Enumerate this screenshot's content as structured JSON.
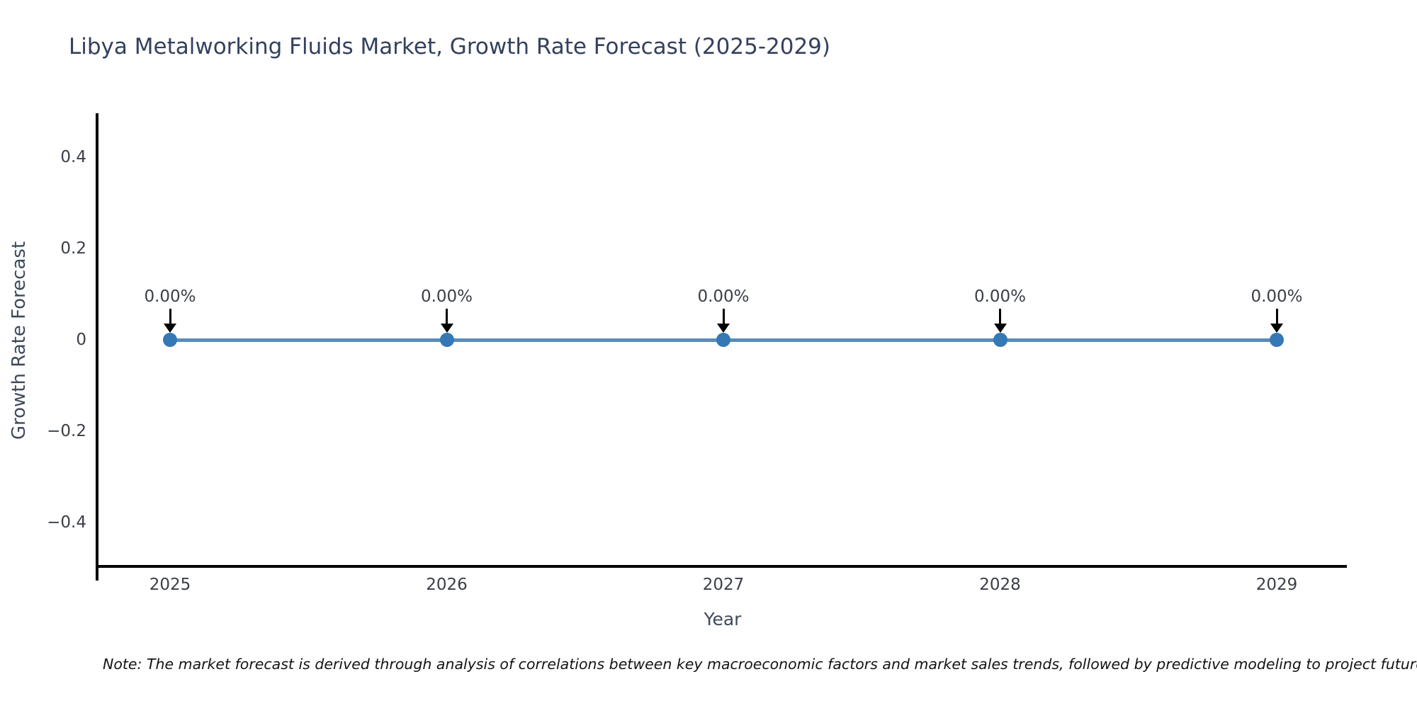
{
  "note": {
    "text": "Note: The market forecast is derived through analysis of correlations between key macroeconomic factors and market sales trends, followed by predictive modeling to project future sales"
  },
  "colors": {
    "background": "#ffffff",
    "title": "#33415e",
    "axis": "#000000",
    "tick_label": "#3a3f47",
    "axis_label": "#3d4a5c",
    "line": "#5b8cb8",
    "marker": "#3478b6",
    "annotation_arrow": "#000000",
    "note_text": "#141414"
  },
  "chart_data": {
    "type": "line",
    "title": "Libya Metalworking Fluids Market, Growth Rate Forecast (2025-2029)",
    "xlabel": "Year",
    "ylabel": "Growth Rate Forecast",
    "x": [
      "2025",
      "2026",
      "2027",
      "2028",
      "2029"
    ],
    "values": [
      0,
      0,
      0,
      0,
      0
    ],
    "point_labels": [
      "0.00%",
      "0.00%",
      "0.00%",
      "0.00%",
      "0.00%"
    ],
    "ytick_labels": [
      "0.4",
      "0.2",
      "0",
      "−0.2",
      "−0.4"
    ],
    "ytick_values": [
      0.4,
      0.2,
      0,
      -0.2,
      -0.4
    ],
    "ylim": [
      -0.5,
      0.5
    ],
    "grid": false,
    "legend": false,
    "marker_style": "circle",
    "annotation_style": "text-with-down-arrow"
  }
}
